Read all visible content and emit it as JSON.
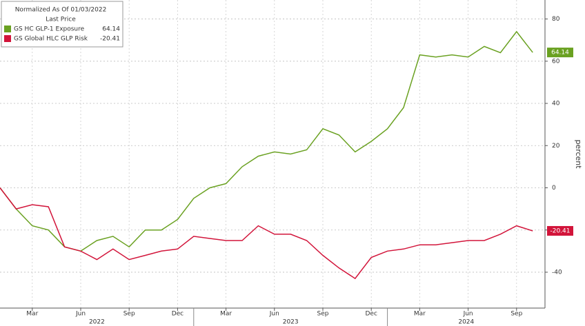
{
  "chart_data": {
    "type": "line",
    "legend_title": "Normalized As Of 01/03/2022",
    "legend_subtitle": "Last Price",
    "legend": "top-left",
    "y_axis_label": "percent",
    "y_axis_side": "right",
    "grid": true,
    "x": [
      "2022-01",
      "2022-02",
      "2022-03",
      "2022-04",
      "2022-05",
      "2022-06",
      "2022-07",
      "2022-08",
      "2022-09",
      "2022-10",
      "2022-11",
      "2022-12",
      "2023-01",
      "2023-02",
      "2023-03",
      "2023-04",
      "2023-05",
      "2023-06",
      "2023-07",
      "2023-08",
      "2023-09",
      "2023-10",
      "2023-11",
      "2023-12",
      "2024-01",
      "2024-02",
      "2024-03",
      "2024-04",
      "2024-05",
      "2024-06",
      "2024-07",
      "2024-08",
      "2024-09",
      "2024-10"
    ],
    "series": [
      {
        "name": "GS HC GLP-1 Exposure",
        "color": "#6aa121",
        "values": [
          0,
          -10,
          -18,
          -20,
          -28,
          -30,
          -25,
          -23,
          -28,
          -20,
          -20,
          -15,
          -5,
          0,
          2,
          10,
          15,
          17,
          16,
          18,
          28,
          25,
          17,
          22,
          28,
          38,
          63,
          62,
          63,
          62,
          67,
          64,
          74,
          64.14
        ]
      },
      {
        "name": "GS Global HLC GLP Risk",
        "color": "#d2143a",
        "values": [
          0,
          -10,
          -8,
          -9,
          -28,
          -30,
          -34,
          -29,
          -34,
          -32,
          -30,
          -29,
          -23,
          -24,
          -25,
          -25,
          -18,
          -22,
          -22,
          -25,
          -32,
          -38,
          -43,
          -33,
          -30,
          -29,
          -27,
          -27,
          -26,
          -25,
          -25,
          -22,
          -18,
          -20.41
        ]
      }
    ],
    "ylim": [
      -57,
      89
    ],
    "yticks": [
      -40,
      -20,
      0,
      20,
      40,
      60,
      80
    ],
    "xticks": [
      {
        "value": "2022-03",
        "label": "Mar"
      },
      {
        "value": "2022-06",
        "label": "Jun"
      },
      {
        "value": "2022-09",
        "label": "Sep"
      },
      {
        "value": "2022-12",
        "label": "Dec"
      },
      {
        "value": "2023-03",
        "label": "Mar"
      },
      {
        "value": "2023-06",
        "label": "Jun"
      },
      {
        "value": "2023-09",
        "label": "Sep"
      },
      {
        "value": "2023-12",
        "label": "Dec"
      },
      {
        "value": "2024-03",
        "label": "Mar"
      },
      {
        "value": "2024-06",
        "label": "Jun"
      },
      {
        "value": "2024-09",
        "label": "Sep"
      }
    ],
    "years": [
      "2022",
      "2023",
      "2024"
    ]
  }
}
